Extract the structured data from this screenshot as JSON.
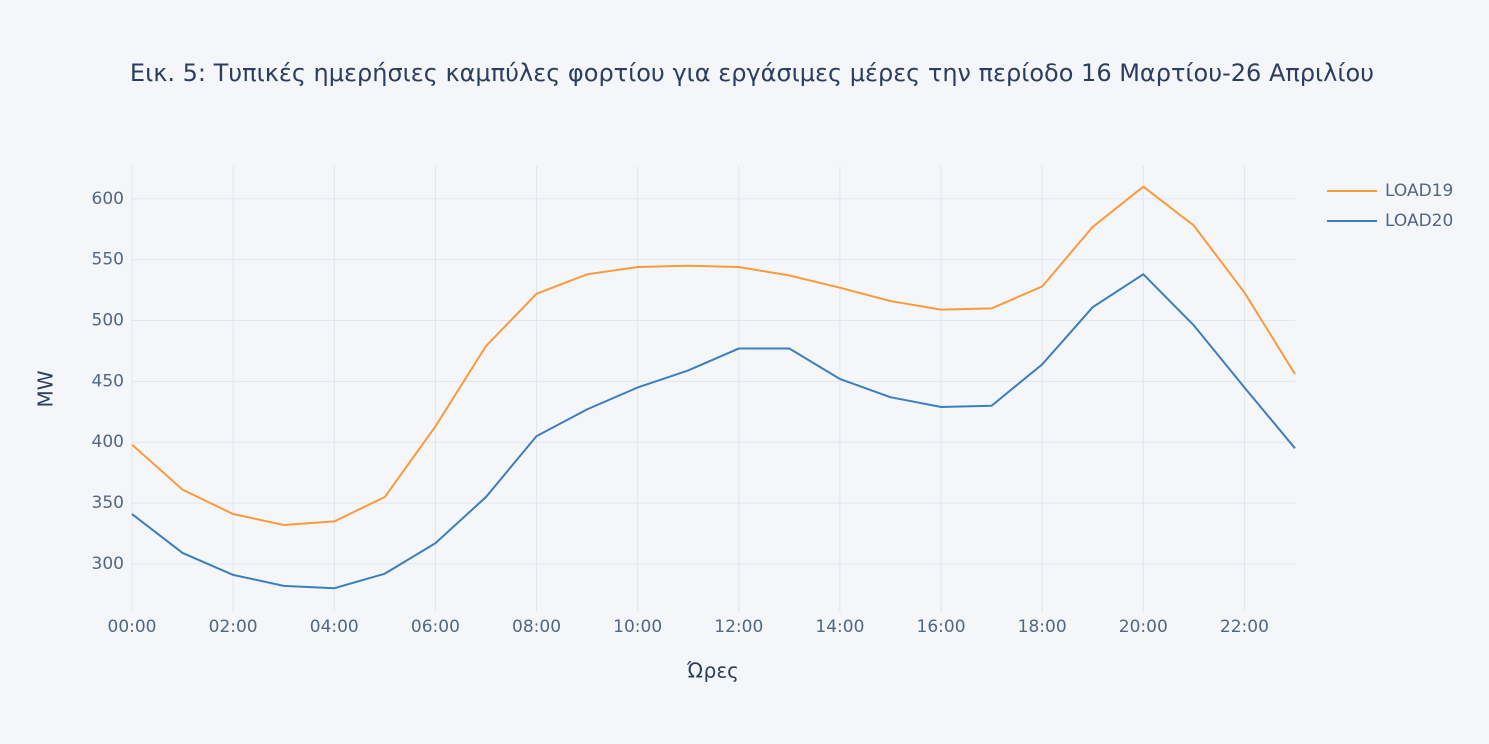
{
  "chart_data": {
    "type": "line",
    "title": "Εικ. 5: Τυπικές ημερήσιες καμπύλες φορτίου για εργάσιμες μέρες την περίοδο 16 Μαρτίου-26 Απριλίου",
    "x_label": "Ώρες",
    "y_label": "MW",
    "x": [
      0,
      1,
      2,
      3,
      4,
      5,
      6,
      7,
      8,
      9,
      10,
      11,
      12,
      13,
      14,
      15,
      16,
      17,
      18,
      19,
      20,
      21,
      22,
      23
    ],
    "series": [
      {
        "name": "LOAD19",
        "color": "#fb9a3c",
        "values": [
          398,
          361,
          341,
          332,
          335,
          355,
          413,
          479,
          522,
          538,
          544,
          545,
          544,
          537,
          527,
          516,
          509,
          510,
          528,
          577,
          610,
          578,
          523,
          456
        ]
      },
      {
        "name": "LOAD20",
        "color": "#3c7fbe",
        "values": [
          341,
          309,
          291,
          282,
          280,
          292,
          317,
          355,
          405,
          427,
          445,
          459,
          477,
          477,
          452,
          437,
          429,
          430,
          464,
          511,
          538,
          496,
          445,
          395
        ]
      }
    ],
    "xlim": [
      0,
      23
    ],
    "xticks": [
      {
        "value": 0,
        "label": "00:00"
      },
      {
        "value": 2,
        "label": "02:00"
      },
      {
        "value": 4,
        "label": "04:00"
      },
      {
        "value": 6,
        "label": "06:00"
      },
      {
        "value": 8,
        "label": "08:00"
      },
      {
        "value": 10,
        "label": "10:00"
      },
      {
        "value": 12,
        "label": "12:00"
      },
      {
        "value": 14,
        "label": "14:00"
      },
      {
        "value": 16,
        "label": "16:00"
      },
      {
        "value": 18,
        "label": "18:00"
      },
      {
        "value": 20,
        "label": "20:00"
      },
      {
        "value": 22,
        "label": "22:00"
      }
    ],
    "ylim": [
      260.5,
      627
    ],
    "yticks": [
      300,
      350,
      400,
      450,
      500,
      550,
      600
    ],
    "grid": true,
    "legend": "top-right"
  }
}
